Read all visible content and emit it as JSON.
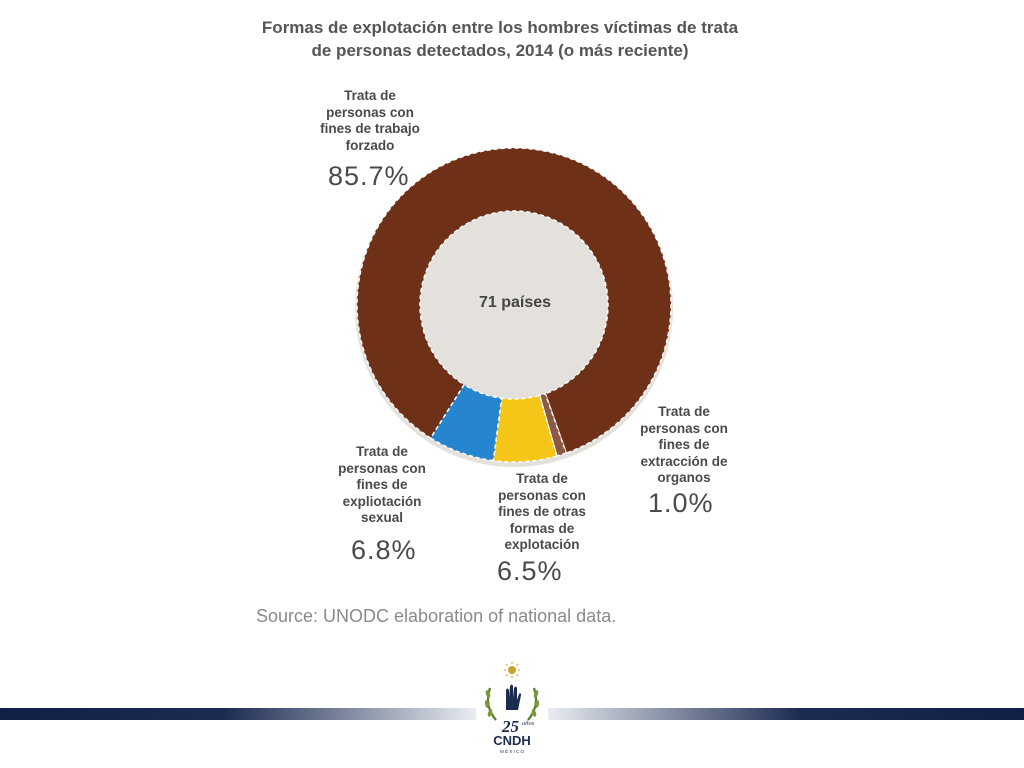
{
  "chart_data": {
    "type": "pie",
    "title_lines": [
      "Formas de explotación entre los hombres víctimas de trata",
      "de personas detectados, 2014 (o más reciente)"
    ],
    "center_label": "71 países",
    "slices": [
      {
        "label_lines": [
          "Trata de",
          "personas con",
          "fines de trabajo",
          "forzado"
        ],
        "value": 85.7,
        "display": "85.7%",
        "color": "#6e3118"
      },
      {
        "label_lines": [
          "Trata de",
          "personas con",
          "fines de",
          "extracción de",
          "organos"
        ],
        "value": 1.0,
        "display": "1.0%",
        "color": "#8a5a44"
      },
      {
        "label_lines": [
          "Trata de",
          "personas con",
          "fines de otras",
          "formas de",
          "explotación"
        ],
        "value": 6.5,
        "display": "6.5%",
        "color": "#f5c518"
      },
      {
        "label_lines": [
          "Trata de",
          "personas con",
          "fines de",
          "expliotación",
          "sexual"
        ],
        "value": 6.8,
        "display": "6.8%",
        "color": "#2585cf"
      }
    ],
    "source": "Source: UNODC elaboration of national data."
  },
  "logo": {
    "big_number": "25",
    "small_text": "años",
    "name": "CNDH",
    "country": "M É X I C O",
    "colors": {
      "gold": "#c9a227",
      "navy": "#1c2b52"
    }
  }
}
